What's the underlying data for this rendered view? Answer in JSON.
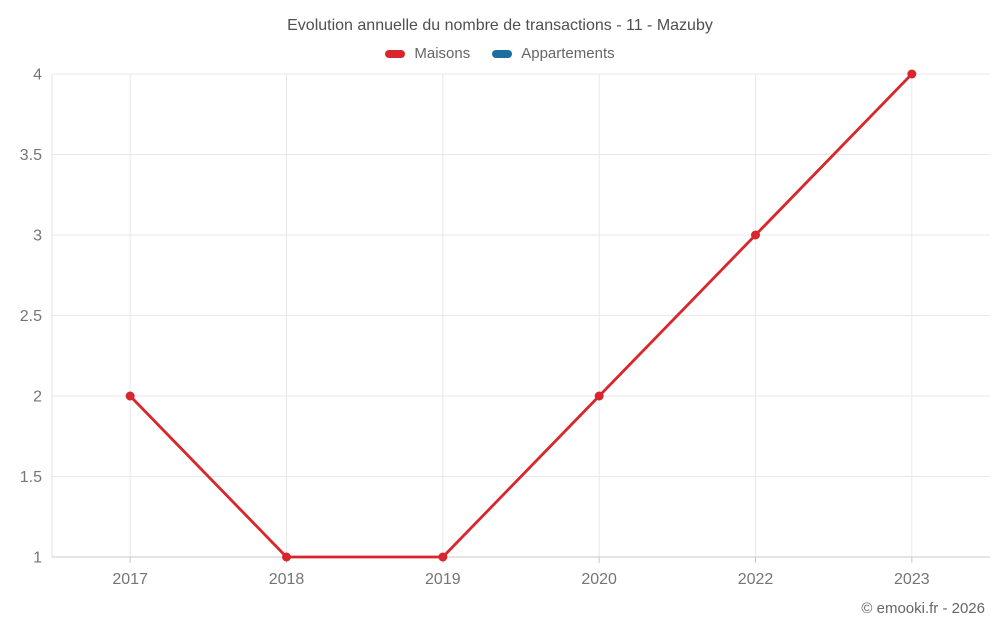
{
  "chart_data": {
    "type": "line",
    "title": "Evolution annuelle du nombre de transactions - 11 - Mazuby",
    "categories": [
      "2017",
      "2018",
      "2019",
      "2020",
      "2022",
      "2023"
    ],
    "series": [
      {
        "name": "Maisons",
        "color": "#d8262c",
        "values": [
          2,
          1,
          1,
          2,
          3,
          4
        ]
      },
      {
        "name": "Appartements",
        "color": "#1c6ea0",
        "values": []
      }
    ],
    "xlabel": "",
    "ylabel": "",
    "ylim": [
      1,
      4
    ],
    "yticks": [
      1,
      1.5,
      2,
      2.5,
      3,
      3.5,
      4
    ],
    "grid": true,
    "legend_position": "top"
  },
  "footer": {
    "copyright": "© emooki.fr - 2026"
  }
}
